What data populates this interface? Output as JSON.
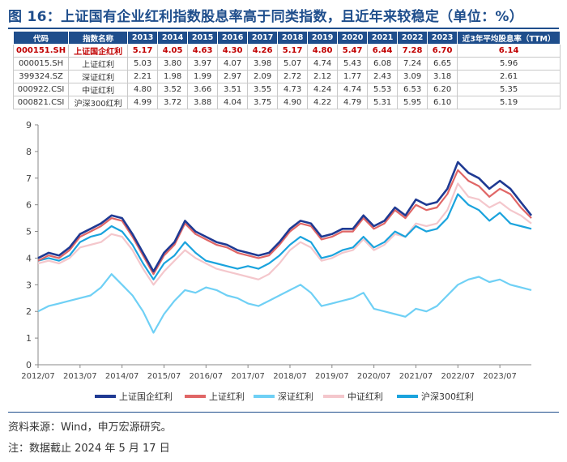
{
  "title": "图 16：上证国有企业红利指数股息率高于同类指数，且近年来较稳定（单位：%）",
  "table": {
    "headers": [
      "代码",
      "指数名称",
      "2013",
      "2014",
      "2015",
      "2016",
      "2017",
      "2018",
      "2019",
      "2020",
      "2021",
      "2022",
      "2023",
      "近3年平均股息率（TTM）"
    ],
    "rows": [
      [
        "000151.SH",
        "上证国企红利",
        "5.17",
        "4.05",
        "4.63",
        "4.30",
        "4.26",
        "5.17",
        "4.80",
        "5.47",
        "6.44",
        "7.28",
        "6.70",
        "6.14"
      ],
      [
        "000015.SH",
        "上证红利",
        "5.03",
        "3.80",
        "3.97",
        "4.07",
        "3.98",
        "5.07",
        "4.74",
        "5.43",
        "6.08",
        "7.24",
        "6.65",
        "5.96"
      ],
      [
        "399324.SZ",
        "深证红利",
        "2.21",
        "1.98",
        "1.99",
        "2.97",
        "2.09",
        "2.72",
        "2.12",
        "1.77",
        "2.43",
        "3.09",
        "3.18",
        "2.61"
      ],
      [
        "000922.CSI",
        "中证红利",
        "4.80",
        "3.52",
        "3.66",
        "3.51",
        "3.55",
        "4.73",
        "4.24",
        "4.74",
        "5.53",
        "6.53",
        "6.20",
        "5.35"
      ],
      [
        "000821.CSI",
        "沪深300红利",
        "4.99",
        "3.72",
        "3.88",
        "4.04",
        "3.75",
        "4.90",
        "4.22",
        "4.79",
        "5.31",
        "5.95",
        "6.10",
        "5.19"
      ]
    ]
  },
  "chart_data": {
    "type": "line",
    "title": "",
    "xlabel": "",
    "ylabel": "",
    "ylim": [
      0,
      9
    ],
    "yticks": [
      "0",
      "1",
      "2",
      "3",
      "4",
      "5",
      "6",
      "7",
      "8",
      "9"
    ],
    "xticks": [
      "2012/07",
      "2013/07",
      "2014/07",
      "2015/07",
      "2016/07",
      "2017/07",
      "2018/07",
      "2019/07",
      "2020/07",
      "2021/07",
      "2022/07",
      "2023/07"
    ],
    "grid": false,
    "legend_position": "bottom",
    "x": [
      "2012/07",
      "2012/10",
      "2013/01",
      "2013/04",
      "2013/07",
      "2013/10",
      "2014/01",
      "2014/04",
      "2014/07",
      "2014/10",
      "2015/01",
      "2015/04",
      "2015/07",
      "2015/10",
      "2016/01",
      "2016/04",
      "2016/07",
      "2016/10",
      "2017/01",
      "2017/04",
      "2017/07",
      "2017/10",
      "2018/01",
      "2018/04",
      "2018/07",
      "2018/10",
      "2019/01",
      "2019/04",
      "2019/07",
      "2019/10",
      "2020/01",
      "2020/04",
      "2020/07",
      "2020/10",
      "2021/01",
      "2021/04",
      "2021/07",
      "2021/10",
      "2022/01",
      "2022/04",
      "2022/07",
      "2022/10",
      "2023/01",
      "2023/04",
      "2023/07",
      "2023/10",
      "2024/01",
      "2024/05"
    ],
    "series": [
      {
        "name": "上证国企红利",
        "color": "#1f3a93",
        "values": [
          4.0,
          4.2,
          4.1,
          4.4,
          4.9,
          5.1,
          5.3,
          5.6,
          5.5,
          4.9,
          4.2,
          3.5,
          4.2,
          4.6,
          5.4,
          5.0,
          4.8,
          4.6,
          4.5,
          4.3,
          4.2,
          4.1,
          4.2,
          4.6,
          5.1,
          5.4,
          5.3,
          4.8,
          4.9,
          5.1,
          5.1,
          5.6,
          5.2,
          5.4,
          5.9,
          5.6,
          6.2,
          6.0,
          6.1,
          6.6,
          7.6,
          7.2,
          7.0,
          6.6,
          6.9,
          6.6,
          6.1,
          5.6
        ]
      },
      {
        "name": "上证红利",
        "color": "#e06666",
        "values": [
          3.9,
          4.1,
          4.0,
          4.3,
          4.8,
          5.0,
          5.2,
          5.5,
          5.4,
          4.8,
          4.1,
          3.4,
          4.1,
          4.5,
          5.3,
          4.9,
          4.7,
          4.5,
          4.4,
          4.2,
          4.1,
          4.0,
          4.1,
          4.5,
          5.0,
          5.3,
          5.2,
          4.7,
          4.8,
          5.0,
          5.0,
          5.5,
          5.1,
          5.3,
          5.8,
          5.5,
          6.0,
          5.8,
          5.9,
          6.4,
          7.3,
          6.9,
          6.7,
          6.3,
          6.6,
          6.4,
          5.9,
          5.5
        ]
      },
      {
        "name": "深证红利",
        "color": "#6fd0f5",
        "values": [
          2.0,
          2.2,
          2.3,
          2.4,
          2.5,
          2.6,
          2.9,
          3.4,
          3.0,
          2.6,
          2.0,
          1.2,
          1.9,
          2.4,
          2.8,
          2.7,
          2.9,
          2.8,
          2.6,
          2.5,
          2.3,
          2.2,
          2.4,
          2.6,
          2.8,
          3.0,
          2.7,
          2.2,
          2.3,
          2.4,
          2.5,
          2.7,
          2.1,
          2.0,
          1.9,
          1.8,
          2.1,
          2.0,
          2.2,
          2.6,
          3.0,
          3.2,
          3.3,
          3.1,
          3.2,
          3.0,
          2.9,
          2.8
        ]
      },
      {
        "name": "中证红利",
        "color": "#f4c7cc",
        "values": [
          3.8,
          3.9,
          3.8,
          4.0,
          4.4,
          4.5,
          4.6,
          4.9,
          4.8,
          4.3,
          3.6,
          3.0,
          3.5,
          3.9,
          4.3,
          4.0,
          3.8,
          3.6,
          3.5,
          3.4,
          3.3,
          3.2,
          3.4,
          3.8,
          4.3,
          4.6,
          4.4,
          3.9,
          4.0,
          4.2,
          4.3,
          4.7,
          4.3,
          4.5,
          4.9,
          4.8,
          5.3,
          5.2,
          5.3,
          5.8,
          6.8,
          6.3,
          6.2,
          5.9,
          6.1,
          5.8,
          5.6,
          5.3
        ]
      },
      {
        "name": "沪深300红利",
        "color": "#1aa3dd",
        "values": [
          3.9,
          4.0,
          3.9,
          4.1,
          4.6,
          4.8,
          4.9,
          5.2,
          5.0,
          4.5,
          3.8,
          3.2,
          3.8,
          4.1,
          4.6,
          4.2,
          3.9,
          3.8,
          3.7,
          3.6,
          3.7,
          3.6,
          3.8,
          4.1,
          4.5,
          4.8,
          4.6,
          4.0,
          4.1,
          4.3,
          4.4,
          4.8,
          4.4,
          4.6,
          5.0,
          4.8,
          5.2,
          5.0,
          5.1,
          5.5,
          6.4,
          6.0,
          5.8,
          5.4,
          5.7,
          5.3,
          5.2,
          5.1
        ]
      }
    ]
  },
  "source": "资料来源：Wind，申万宏源研究。",
  "note": "注：数据截止 2024 年 5 月 17 日"
}
